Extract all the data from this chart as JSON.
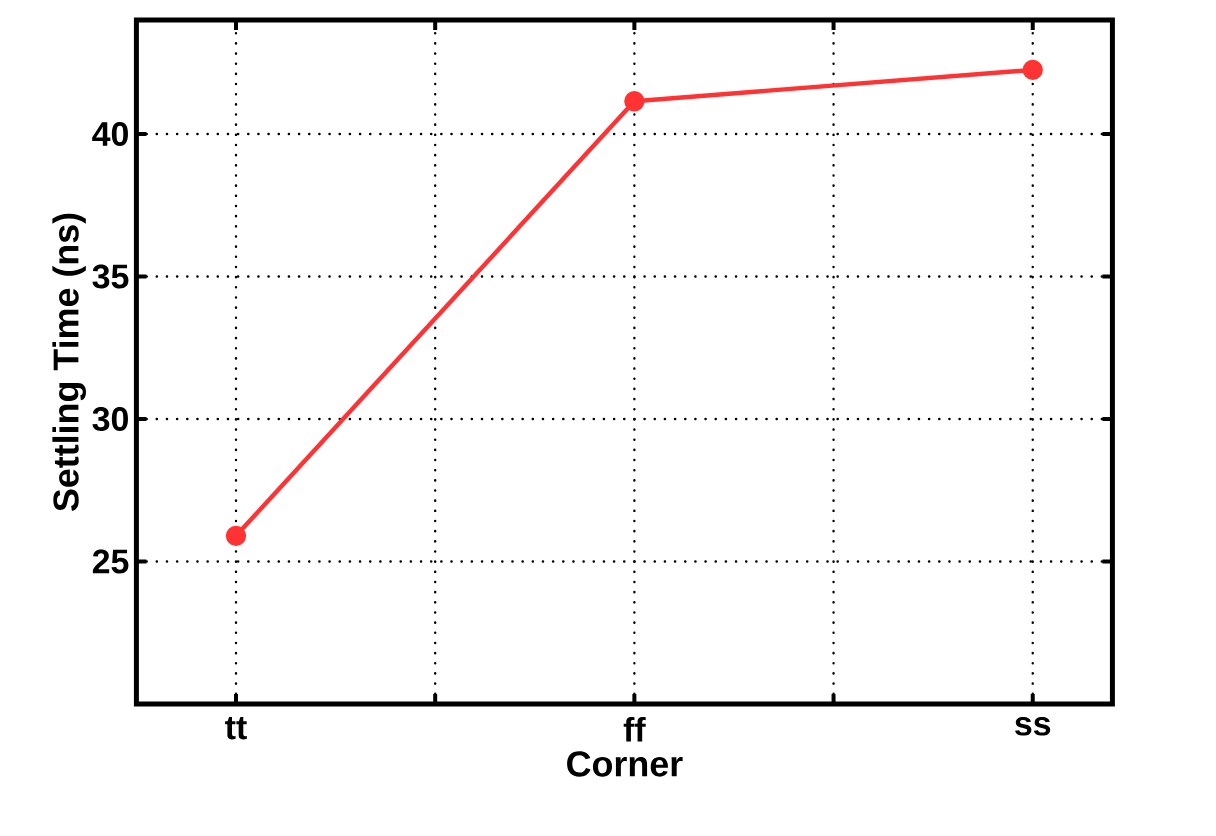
{
  "chart_data": {
    "type": "line",
    "xlabel": "Corner",
    "ylabel": "Settling Time (ns)",
    "categories": [
      "tt",
      "ff",
      "ss"
    ],
    "series": [
      {
        "color": "#ff3333",
        "values": [
          25.9,
          41.15,
          42.25
        ]
      }
    ],
    "ylim": [
      20,
      44
    ],
    "yticks": [
      25,
      30,
      35,
      40
    ],
    "grid": true,
    "marker": "circle",
    "line_style": "solid"
  }
}
